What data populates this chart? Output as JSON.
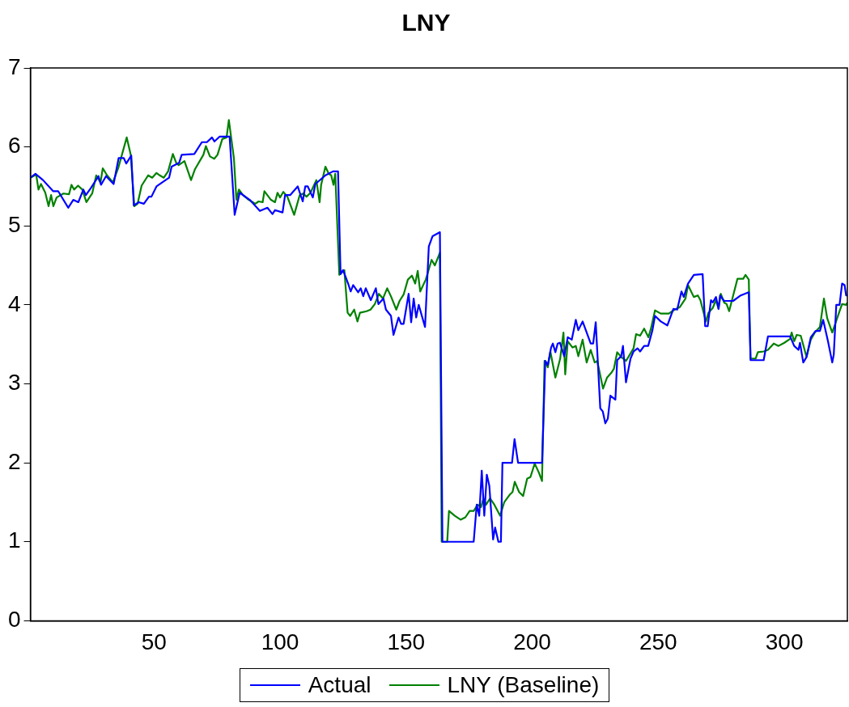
{
  "chart_data": {
    "type": "line",
    "title": "LNY",
    "legend": "bottom",
    "marker": "none",
    "line_style": "solid",
    "grid": false,
    "xlim": [
      1,
      325
    ],
    "xticks": [
      50,
      100,
      150,
      200,
      250,
      300
    ],
    "ylim": [
      0,
      7
    ],
    "yticks": [
      0,
      1,
      2,
      3,
      4,
      5,
      6,
      7
    ],
    "series": [
      {
        "name": "Actual",
        "color": "#0000ff",
        "x": [
          1,
          3,
          6,
          10,
          12,
          16,
          18,
          20,
          22,
          23,
          25,
          28,
          29,
          31,
          34,
          36,
          38,
          39,
          41,
          42,
          44,
          46,
          48,
          49,
          51,
          56,
          57,
          60,
          61,
          66,
          69,
          71,
          73,
          74,
          76,
          80,
          82,
          84,
          88,
          90,
          92,
          95,
          97,
          98,
          101,
          102,
          104,
          107,
          109,
          110,
          111,
          113,
          114,
          118,
          121,
          123,
          124,
          125,
          127,
          128,
          129,
          131,
          132,
          133,
          134,
          136,
          138,
          139,
          141,
          142,
          144,
          145,
          147,
          148,
          149,
          151,
          152,
          153,
          154,
          155,
          157.5,
          159,
          160.5,
          163.4,
          164.4,
          176.8,
          178,
          179,
          180,
          181,
          182,
          183,
          184.5,
          185.3,
          186.6,
          187.6,
          188.2,
          192,
          193,
          194.4,
          203.9,
          205.2,
          206.2,
          207.5,
          208.2,
          209.2,
          210.1,
          211,
          212.7,
          214.1,
          215.7,
          217.3,
          218.3,
          220,
          223.2,
          224.2,
          225.2,
          227,
          228,
          229,
          230,
          231,
          233,
          233.7,
          235.3,
          236,
          237.2,
          239,
          240.2,
          241.8,
          242.8,
          244.4,
          246,
          247.7,
          248.7,
          251,
          253.6,
          256,
          257.5,
          259.2,
          260.1,
          261.8,
          264.1,
          267.6,
          268.6,
          269.6,
          270.9,
          271.6,
          272.9,
          273.9,
          274.5,
          276.1,
          279.7,
          282.7,
          285.9,
          286.6,
          291.8,
          293.5,
          302.3,
          303.9,
          305.6,
          306.2,
          307.5,
          308.8,
          310.5,
          312.4,
          314.1,
          315.4,
          317.3,
          319,
          319.6,
          320.6,
          321.9,
          322.9,
          323.9,
          324.5,
          325
        ],
        "values": [
          5.61,
          5.66,
          5.58,
          5.44,
          5.44,
          5.23,
          5.33,
          5.3,
          5.46,
          5.39,
          5.48,
          5.63,
          5.52,
          5.63,
          5.53,
          5.86,
          5.86,
          5.79,
          5.89,
          5.26,
          5.3,
          5.28,
          5.37,
          5.37,
          5.5,
          5.61,
          5.75,
          5.8,
          5.9,
          5.91,
          6.06,
          6.06,
          6.12,
          6.07,
          6.13,
          6.13,
          5.14,
          5.42,
          5.33,
          5.26,
          5.19,
          5.23,
          5.15,
          5.2,
          5.17,
          5.39,
          5.39,
          5.5,
          5.31,
          5.5,
          5.5,
          5.36,
          5.53,
          5.64,
          5.69,
          5.69,
          4.39,
          4.44,
          4.27,
          4.17,
          4.25,
          4.16,
          4.21,
          4.11,
          4.21,
          4.06,
          4.21,
          4.01,
          4.08,
          3.94,
          3.86,
          3.62,
          3.84,
          3.76,
          3.76,
          4.14,
          3.78,
          4.08,
          3.84,
          4.0,
          3.72,
          4.74,
          4.87,
          4.92,
          1.0,
          1.0,
          1.47,
          1.33,
          1.9,
          1.33,
          1.85,
          1.71,
          1.03,
          1.18,
          1.0,
          1.0,
          2.0,
          2.0,
          2.3,
          2.0,
          2.0,
          3.29,
          3.24,
          3.46,
          3.51,
          3.4,
          3.51,
          3.52,
          3.35,
          3.59,
          3.56,
          3.81,
          3.68,
          3.79,
          3.51,
          3.51,
          3.78,
          2.69,
          2.65,
          2.5,
          2.56,
          2.85,
          2.8,
          3.3,
          3.35,
          3.48,
          3.02,
          3.32,
          3.41,
          3.45,
          3.41,
          3.48,
          3.48,
          3.68,
          3.86,
          3.79,
          3.74,
          3.95,
          3.94,
          4.17,
          4.1,
          4.27,
          4.38,
          4.39,
          3.73,
          3.73,
          4.06,
          4.03,
          4.1,
          3.95,
          4.12,
          4.05,
          4.05,
          4.12,
          4.16,
          3.3,
          3.3,
          3.6,
          3.6,
          3.48,
          3.43,
          3.52,
          3.27,
          3.34,
          3.59,
          3.67,
          3.67,
          3.81,
          3.54,
          3.27,
          3.37,
          4.0,
          4.0,
          4.27,
          4.25,
          4.12,
          4.12
        ]
      },
      {
        "name": "LNY (Baseline)",
        "color": "#008000",
        "x": [
          1,
          3.3,
          4.2,
          5.2,
          6.9,
          8.2,
          9.2,
          10.1,
          11.4,
          14.1,
          16.3,
          17.3,
          18.3,
          19.9,
          21.6,
          23.2,
          25.5,
          27.1,
          28.8,
          29.7,
          31.4,
          33.7,
          35.9,
          39.2,
          40.8,
          42.2,
          43.5,
          45.1,
          47.7,
          49.3,
          51,
          52.3,
          53.9,
          55.6,
          57.5,
          58.8,
          59.8,
          62.1,
          64.7,
          66.3,
          69.6,
          70.6,
          72.2,
          73.9,
          75.2,
          77.1,
          78.8,
          79.7,
          81.7,
          82.7,
          83.7,
          85.3,
          87.6,
          90.2,
          91.5,
          93.1,
          93.8,
          96.4,
          98,
          99,
          100,
          101.3,
          102.9,
          105.6,
          107.8,
          109.2,
          110.5,
          112.1,
          114.4,
          115.7,
          116.3,
          118,
          119.3,
          120.3,
          121.2,
          121.9,
          123.5,
          125.5,
          126.8,
          127.8,
          129.4,
          130.7,
          131.7,
          134.3,
          135.9,
          137.6,
          139.2,
          140.8,
          142.5,
          144.1,
          146.1,
          147.4,
          149,
          150.7,
          152.3,
          153.6,
          154.6,
          155.6,
          157.8,
          160.1,
          161.4,
          163.4,
          164.1,
          166.3,
          167,
          169.3,
          171.6,
          173.5,
          175.2,
          176.8,
          178.4,
          179.7,
          180.7,
          181.7,
          183.3,
          185,
          187.3,
          188.9,
          191.2,
          192.2,
          193.1,
          194.8,
          196.4,
          198,
          199.3,
          201,
          202.6,
          203.9,
          204.9,
          206.2,
          207.2,
          209.2,
          211.1,
          212.4,
          213.1,
          214.1,
          216,
          217.3,
          218.3,
          220,
          221.6,
          223.2,
          224.8,
          225.8,
          228.1,
          229.7,
          231.4,
          232.4,
          233.7,
          235.3,
          237.2,
          240.2,
          241.2,
          242.8,
          244.4,
          246.1,
          247.1,
          248.7,
          251,
          254.2,
          256.5,
          258.5,
          260.8,
          261.8,
          264.1,
          265.7,
          266.7,
          268.9,
          269.9,
          271.6,
          272.9,
          273.9,
          274.8,
          276.1,
          277.1,
          278.1,
          281.4,
          283.7,
          284.6,
          285.9,
          286.6,
          288.6,
          289.5,
          291.8,
          293.5,
          295.8,
          297.7,
          300,
          302.3,
          302.9,
          303.9,
          304.9,
          306.5,
          308.8,
          310.5,
          312.1,
          314.1,
          315.7,
          317,
          319,
          321.9,
          322.9,
          324.5,
          325
        ],
        "values": [
          5.61,
          5.65,
          5.46,
          5.53,
          5.42,
          5.25,
          5.39,
          5.25,
          5.36,
          5.41,
          5.4,
          5.52,
          5.46,
          5.51,
          5.46,
          5.3,
          5.41,
          5.64,
          5.55,
          5.73,
          5.64,
          5.55,
          5.74,
          6.12,
          5.9,
          5.25,
          5.28,
          5.51,
          5.64,
          5.61,
          5.67,
          5.64,
          5.61,
          5.69,
          5.91,
          5.8,
          5.77,
          5.82,
          5.58,
          5.72,
          5.9,
          6.01,
          5.88,
          5.85,
          5.9,
          6.1,
          6.12,
          6.34,
          5.86,
          5.33,
          5.46,
          5.39,
          5.33,
          5.28,
          5.31,
          5.3,
          5.44,
          5.33,
          5.3,
          5.42,
          5.36,
          5.43,
          5.37,
          5.14,
          5.39,
          5.41,
          5.37,
          5.42,
          5.58,
          5.3,
          5.52,
          5.75,
          5.66,
          5.64,
          5.52,
          5.66,
          4.38,
          4.44,
          3.9,
          3.86,
          3.94,
          3.79,
          3.9,
          3.92,
          3.94,
          4.01,
          4.14,
          4.08,
          4.21,
          4.1,
          3.94,
          4.05,
          4.13,
          4.32,
          4.37,
          4.27,
          4.43,
          4.17,
          4.32,
          4.57,
          4.5,
          4.66,
          1.0,
          1.0,
          1.39,
          1.33,
          1.28,
          1.31,
          1.39,
          1.39,
          1.47,
          1.44,
          1.55,
          1.47,
          1.55,
          1.47,
          1.33,
          1.5,
          1.6,
          1.63,
          1.76,
          1.63,
          1.58,
          1.8,
          1.82,
          1.99,
          1.88,
          1.77,
          3.29,
          3.21,
          3.41,
          3.08,
          3.32,
          3.65,
          3.12,
          3.54,
          3.46,
          3.48,
          3.35,
          3.56,
          3.27,
          3.43,
          3.27,
          3.29,
          2.94,
          3.08,
          3.14,
          3.19,
          3.4,
          3.34,
          3.29,
          3.45,
          3.63,
          3.61,
          3.7,
          3.59,
          3.7,
          3.93,
          3.89,
          3.89,
          3.94,
          3.97,
          4.08,
          4.25,
          4.1,
          4.12,
          4.06,
          3.79,
          3.9,
          3.96,
          4.06,
          3.95,
          4.14,
          4.03,
          4.01,
          3.92,
          4.33,
          4.33,
          4.38,
          4.32,
          3.32,
          3.32,
          3.4,
          3.41,
          3.43,
          3.51,
          3.48,
          3.52,
          3.57,
          3.65,
          3.54,
          3.62,
          3.61,
          3.34,
          3.56,
          3.65,
          3.72,
          4.08,
          3.83,
          3.65,
          3.92,
          4.01,
          4.0,
          4.03
        ]
      }
    ]
  }
}
